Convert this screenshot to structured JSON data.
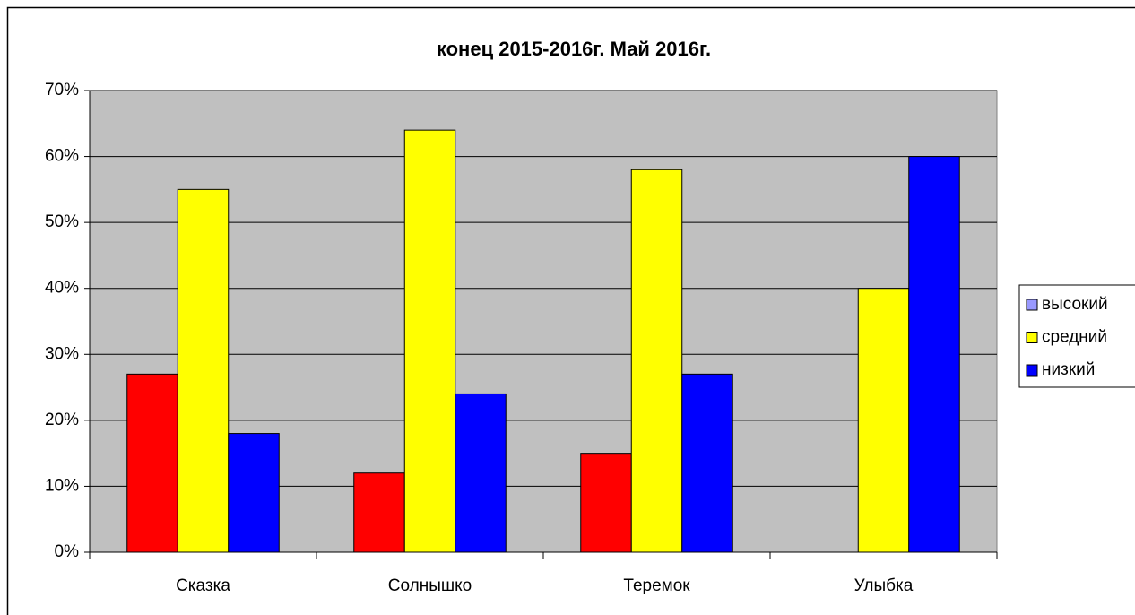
{
  "chart_data": {
    "type": "bar",
    "title": "конец 2015-2016г. Май 2016г.",
    "categories": [
      "Сказка",
      "Солнышко",
      "Теремок",
      "Улыбка"
    ],
    "series": [
      {
        "name": "высокий",
        "color": "#ff0000",
        "legend_color": "#9999ff",
        "values": [
          27,
          12,
          15,
          null
        ]
      },
      {
        "name": "средний",
        "color": "#ffff00",
        "values": [
          55,
          64,
          58,
          40
        ]
      },
      {
        "name": "низкий",
        "color": "#0000ff",
        "values": [
          18,
          24,
          27,
          60
        ]
      }
    ],
    "ylim": [
      0,
      70
    ],
    "yticks": [
      {
        "value": 0,
        "label": "0%"
      },
      {
        "value": 10,
        "label": "10%"
      },
      {
        "value": 20,
        "label": "20%"
      },
      {
        "value": 30,
        "label": "30%"
      },
      {
        "value": 40,
        "label": "40%"
      },
      {
        "value": 50,
        "label": "50%"
      },
      {
        "value": 60,
        "label": "60%"
      },
      {
        "value": 70,
        "label": "70%"
      }
    ],
    "grid": true,
    "legend": "right",
    "plot_background": "#c0c0c0"
  }
}
